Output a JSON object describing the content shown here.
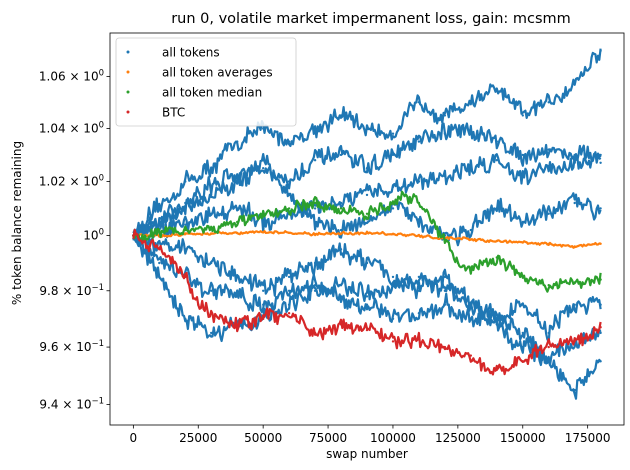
{
  "chart_data": {
    "type": "scatter",
    "title": "run 0, volatile market impermanent loss, gain: mcsmm",
    "xlabel": "swap number",
    "ylabel": "% token balance remaining",
    "xlim": [
      -9000,
      189000
    ],
    "ylim": [
      0.933,
      1.077
    ],
    "yscale": "log",
    "x_ticks": [
      0,
      25000,
      50000,
      75000,
      100000,
      125000,
      150000,
      175000
    ],
    "x_tick_labels": [
      "0",
      "25000",
      "50000",
      "75000",
      "100000",
      "125000",
      "150000",
      "175000"
    ],
    "y_ticks": [
      {
        "value": 0.94,
        "mantissa": "9.4",
        "exp": "−1"
      },
      {
        "value": 0.96,
        "mantissa": "9.6",
        "exp": "−1"
      },
      {
        "value": 0.98,
        "mantissa": "9.8",
        "exp": "−1"
      },
      {
        "value": 1.0,
        "mantissa": "",
        "exp": "0"
      },
      {
        "value": 1.02,
        "mantissa": "1.02",
        "exp": "0"
      },
      {
        "value": 1.04,
        "mantissa": "1.04",
        "exp": "0"
      },
      {
        "value": 1.06,
        "mantissa": "1.06",
        "exp": "0"
      }
    ],
    "legend_position": "top-left",
    "series": [
      {
        "name": "all tokens",
        "color": "#1f77b4",
        "group": "tokens",
        "x": [
          0,
          10000,
          20000,
          30000,
          40000,
          50000,
          60000,
          70000,
          80000,
          90000,
          100000,
          110000,
          120000,
          130000,
          140000,
          150000,
          160000,
          170000,
          180000
        ],
        "y": [
          1.0,
          1.01,
          1.02,
          1.025,
          1.035,
          1.04,
          1.035,
          1.04,
          1.045,
          1.04,
          1.038,
          1.05,
          1.045,
          1.05,
          1.055,
          1.045,
          1.05,
          1.058,
          1.07
        ]
      },
      {
        "name": "",
        "color": "#1f77b4",
        "group": "tokens",
        "x": [
          0,
          10000,
          20000,
          30000,
          40000,
          50000,
          60000,
          70000,
          80000,
          90000,
          100000,
          110000,
          120000,
          130000,
          140000,
          150000,
          160000,
          170000,
          180000
        ],
        "y": [
          1.0,
          1.005,
          1.01,
          1.015,
          1.02,
          1.025,
          1.02,
          1.028,
          1.03,
          1.025,
          1.03,
          1.035,
          1.038,
          1.04,
          1.035,
          1.03,
          1.032,
          1.03,
          1.03
        ]
      },
      {
        "name": "",
        "color": "#1f77b4",
        "group": "tokens",
        "x": [
          0,
          10000,
          20000,
          30000,
          40000,
          50000,
          60000,
          70000,
          80000,
          90000,
          100000,
          110000,
          120000,
          130000,
          140000,
          150000,
          160000,
          170000,
          180000
        ],
        "y": [
          1.0,
          1.002,
          1.004,
          1.008,
          1.01,
          1.005,
          1.008,
          1.01,
          1.012,
          1.015,
          1.018,
          1.02,
          1.022,
          1.025,
          1.028,
          1.022,
          1.025,
          1.027,
          1.027
        ]
      },
      {
        "name": "",
        "color": "#1f77b4",
        "group": "tokens",
        "x": [
          0,
          10000,
          20000,
          30000,
          40000,
          50000,
          60000,
          70000,
          80000,
          90000,
          100000,
          110000,
          120000,
          130000,
          140000,
          150000,
          160000,
          170000,
          180000
        ],
        "y": [
          1.0,
          1.005,
          1.012,
          1.018,
          1.022,
          1.028,
          1.015,
          1.005,
          1.002,
          1.006,
          1.01,
          1.006,
          1.0,
          1.002,
          1.01,
          1.005,
          1.008,
          1.012,
          1.01
        ]
      },
      {
        "name": "",
        "color": "#1f77b4",
        "group": "tokens",
        "x": [
          0,
          10000,
          20000,
          30000,
          40000,
          50000,
          60000,
          70000,
          80000,
          90000,
          100000,
          110000,
          120000,
          130000,
          140000,
          150000,
          160000,
          170000,
          180000
        ],
        "y": [
          1.0,
          0.998,
          0.995,
          0.99,
          0.985,
          0.98,
          0.985,
          0.99,
          0.995,
          0.99,
          0.985,
          0.98,
          0.985,
          0.975,
          0.97,
          0.975,
          0.965,
          0.975,
          0.975
        ]
      },
      {
        "name": "",
        "color": "#1f77b4",
        "group": "tokens",
        "x": [
          0,
          10000,
          20000,
          30000,
          40000,
          50000,
          60000,
          70000,
          80000,
          90000,
          100000,
          110000,
          120000,
          130000,
          140000,
          150000,
          160000,
          170000,
          180000
        ],
        "y": [
          1.0,
          0.99,
          0.985,
          0.98,
          0.978,
          0.975,
          0.98,
          0.982,
          0.978,
          0.975,
          0.97,
          0.972,
          0.975,
          0.97,
          0.968,
          0.96,
          0.955,
          0.962,
          0.965
        ]
      },
      {
        "name": "",
        "color": "#1f77b4",
        "group": "tokens",
        "x": [
          0,
          10000,
          20000,
          30000,
          40000,
          50000,
          60000,
          70000,
          80000,
          90000,
          100000,
          110000,
          120000,
          130000,
          140000,
          150000,
          160000,
          170000,
          180000
        ],
        "y": [
          1.0,
          0.985,
          0.97,
          0.965,
          0.968,
          0.97,
          0.975,
          0.98,
          0.982,
          0.978,
          0.982,
          0.985,
          0.98,
          0.975,
          0.97,
          0.965,
          0.955,
          0.945,
          0.955
        ]
      },
      {
        "name": "all token averages",
        "color": "#ff7f0e",
        "group": "averages",
        "x": [
          0,
          10000,
          20000,
          30000,
          40000,
          50000,
          60000,
          70000,
          80000,
          90000,
          100000,
          110000,
          120000,
          130000,
          140000,
          150000,
          160000,
          170000,
          180000
        ],
        "y": [
          1.0,
          1.0,
          1.0005,
          1.0008,
          1.001,
          1.0012,
          1.001,
          1.0005,
          1.0008,
          1.001,
          1.0005,
          1.0,
          0.999,
          0.9985,
          0.998,
          0.9975,
          0.997,
          0.996,
          0.997
        ]
      },
      {
        "name": "all token median",
        "color": "#2ca02c",
        "group": "median",
        "x": [
          0,
          10000,
          20000,
          30000,
          40000,
          50000,
          60000,
          70000,
          80000,
          90000,
          100000,
          105000,
          110000,
          115000,
          120000,
          125000,
          130000,
          140000,
          150000,
          160000,
          170000,
          180000
        ],
        "y": [
          1.0,
          1.001,
          1.002,
          1.003,
          1.005,
          1.007,
          1.01,
          1.012,
          1.01,
          1.008,
          1.012,
          1.015,
          1.012,
          1.005,
          0.998,
          0.99,
          0.988,
          0.992,
          0.985,
          0.982,
          0.983,
          0.984
        ]
      },
      {
        "name": "BTC",
        "color": "#d62728",
        "group": "btc",
        "x": [
          0,
          10000,
          20000,
          25000,
          30000,
          40000,
          50000,
          60000,
          70000,
          80000,
          90000,
          100000,
          110000,
          120000,
          130000,
          140000,
          150000,
          160000,
          170000,
          180000
        ],
        "y": [
          1.0,
          0.995,
          0.985,
          0.975,
          0.972,
          0.968,
          0.97,
          0.972,
          0.965,
          0.968,
          0.966,
          0.962,
          0.963,
          0.96,
          0.957,
          0.952,
          0.955,
          0.96,
          0.962,
          0.967
        ]
      }
    ]
  }
}
